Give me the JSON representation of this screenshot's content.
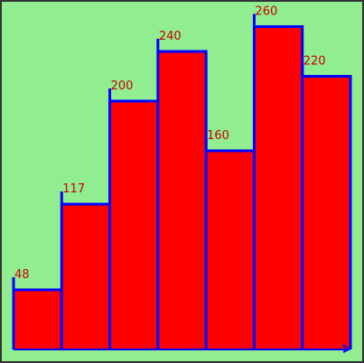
{
  "chart_data": {
    "type": "bar",
    "values": [
      48,
      117,
      200,
      240,
      160,
      260,
      220
    ],
    "color": "#ff0000",
    "edge_color": "#0000ff",
    "label_color": "#cc0000",
    "background": "#90ee90"
  }
}
